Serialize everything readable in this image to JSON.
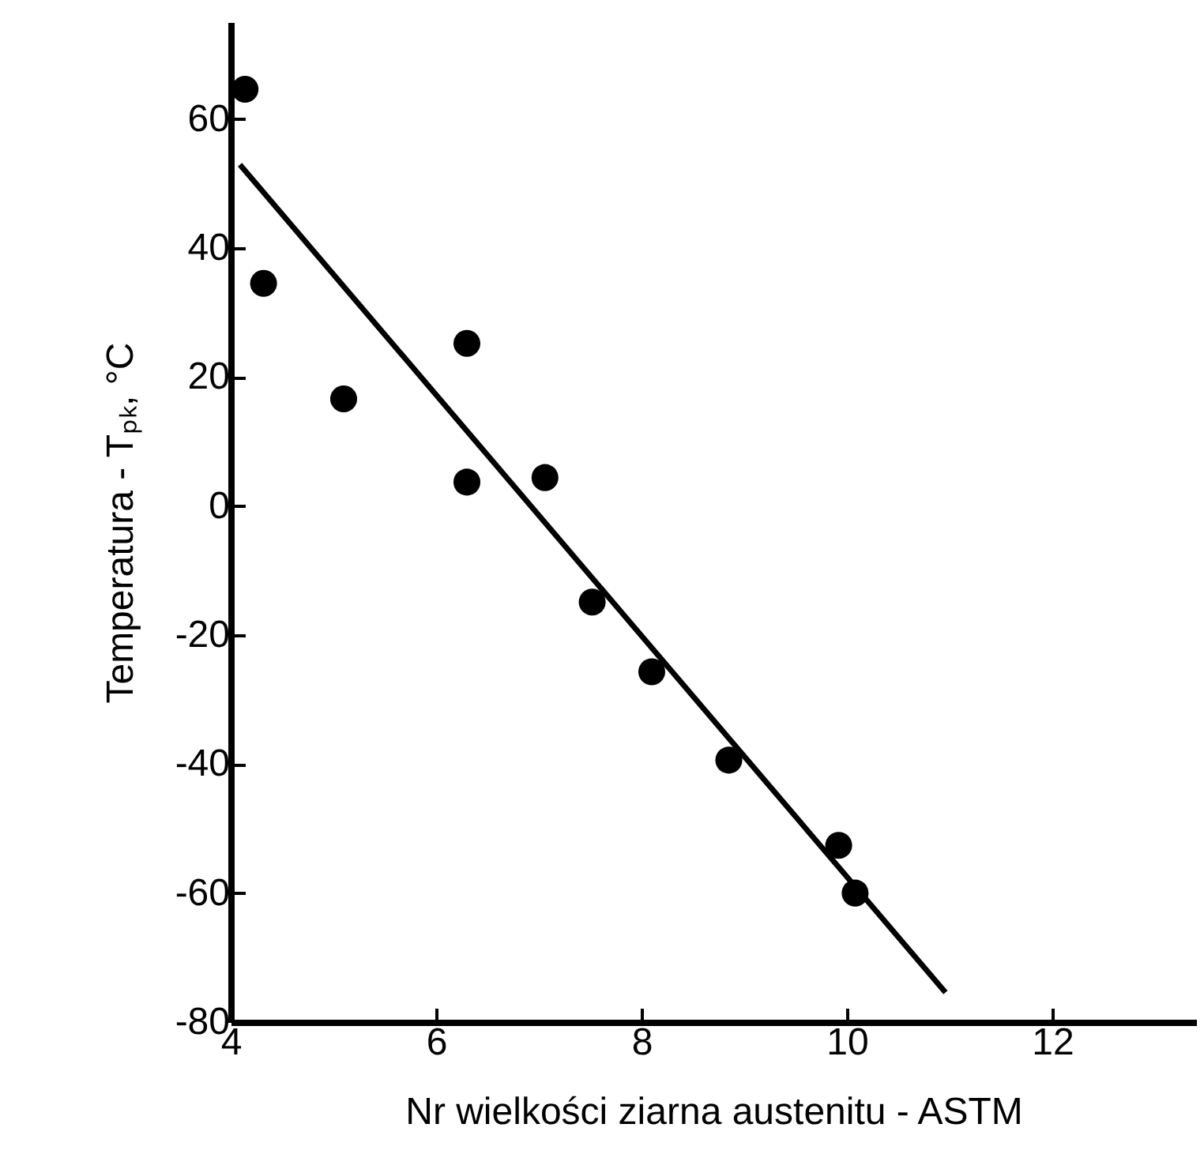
{
  "chart_data": {
    "type": "scatter",
    "xlabel": "Nr wielkości ziarna austenitu - ASTM",
    "ylabel": "Temperatura - Tₚₖ, °C",
    "xlim": [
      4,
      13.4
    ],
    "xticks": [
      4,
      6,
      8,
      10,
      12
    ],
    "ylim": [
      -80,
      75
    ],
    "yticks": [
      -80,
      -60,
      -40,
      -20,
      0,
      20,
      40,
      60
    ],
    "grid": false,
    "series": [
      {
        "marker": "circle",
        "color": "#000000",
        "x": [
          4.14,
          4.32,
          5.1,
          6.3,
          6.3,
          7.06,
          7.52,
          8.1,
          8.85,
          9.92,
          10.08
        ],
        "values": [
          64.6,
          34.5,
          16.6,
          25.2,
          3.7,
          4.4,
          -14.9,
          -25.7,
          -39.4,
          -52.6,
          -60
        ]
      },
      {
        "type": "line",
        "color": "#000000",
        "line_style": "solid",
        "x": [
          4.09,
          10.96
        ],
        "values": [
          52.9,
          -75.4
        ]
      }
    ]
  }
}
